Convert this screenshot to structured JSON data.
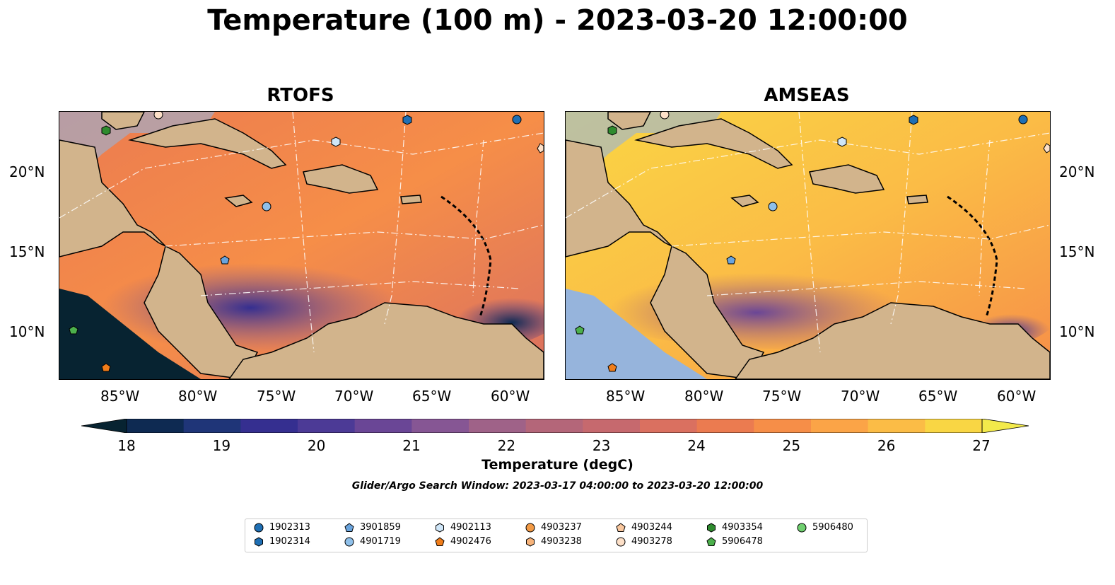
{
  "title": "Temperature (100 m) - 2023-03-20 12:00:00",
  "panels": [
    {
      "title": "RTOFS"
    },
    {
      "title": "AMSEAS"
    }
  ],
  "lat_labels": [
    "20°N",
    "15°N",
    "10°N"
  ],
  "lon_labels": [
    "85°W",
    "80°W",
    "75°W",
    "70°W",
    "65°W",
    "60°W"
  ],
  "colorbar": {
    "label": "Temperature (degC)",
    "ticks": [
      "18",
      "19",
      "20",
      "21",
      "22",
      "23",
      "24",
      "25",
      "26",
      "27"
    ],
    "colors": [
      "#072331",
      "#0e2a52",
      "#1f3578",
      "#352f90",
      "#4c3a96",
      "#6a4696",
      "#865694",
      "#9f6288",
      "#b46679",
      "#c6696e",
      "#da7060",
      "#eb7b50",
      "#f68e48",
      "#fba447",
      "#fbbc46",
      "#f9d644",
      "#f3ea4b"
    ]
  },
  "search_window": "Glider/Argo Search Window: 2023-03-17 04:00:00 to 2023-03-20 12:00:00",
  "legend": [
    {
      "label": "1902313",
      "shape": "circle",
      "color": "#1f6fb4"
    },
    {
      "label": "1902314",
      "shape": "hexagon",
      "color": "#1f6fb4"
    },
    {
      "label": "3901859",
      "shape": "pentagon",
      "color": "#6aa4dd"
    },
    {
      "label": "4901719",
      "shape": "circle",
      "color": "#8fc0ea"
    },
    {
      "label": "4902113",
      "shape": "hexagon",
      "color": "#cfe6f8"
    },
    {
      "label": "4902476",
      "shape": "pentagon",
      "color": "#f07d1a"
    },
    {
      "label": "4903237",
      "shape": "circle",
      "color": "#f29a45"
    },
    {
      "label": "4903238",
      "shape": "hexagon",
      "color": "#f7b37a"
    },
    {
      "label": "4903244",
      "shape": "pentagon",
      "color": "#f9c79e"
    },
    {
      "label": "4903278",
      "shape": "circle",
      "color": "#fde0c8"
    },
    {
      "label": "4903354",
      "shape": "hexagon",
      "color": "#2e8b2e"
    },
    {
      "label": "5906478",
      "shape": "pentagon",
      "color": "#4cb04c"
    },
    {
      "label": "5906480",
      "shape": "circle",
      "color": "#6fcf6f"
    }
  ]
}
